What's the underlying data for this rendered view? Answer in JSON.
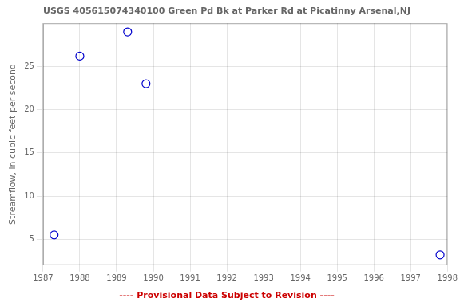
{
  "chart_data": {
    "type": "scatter",
    "title": "USGS 405615074340100 Green Pd Bk at Parker Rd at Picatinny Arsenal,NJ",
    "y_label": "Streamflow, in cubic feet per second",
    "annotations": [
      {
        "text": "---- Provisional Data Subject to Revision ----",
        "color": "#CC0000"
      }
    ],
    "x": [
      1987.3,
      1988.0,
      1989.3,
      1989.8,
      1997.8
    ],
    "values": [
      5.5,
      26.2,
      29.0,
      23.0,
      3.2
    ],
    "color": "#0000CC",
    "marker": "circle",
    "xlim": [
      1987,
      1998
    ],
    "ylim": [
      2,
      30
    ],
    "xticks": [
      1987,
      1988,
      1989,
      1990,
      1991,
      1992,
      1993,
      1994,
      1995,
      1996,
      1997,
      1998
    ],
    "yticks": [
      5,
      10,
      15,
      20,
      25
    ],
    "grid": true
  }
}
